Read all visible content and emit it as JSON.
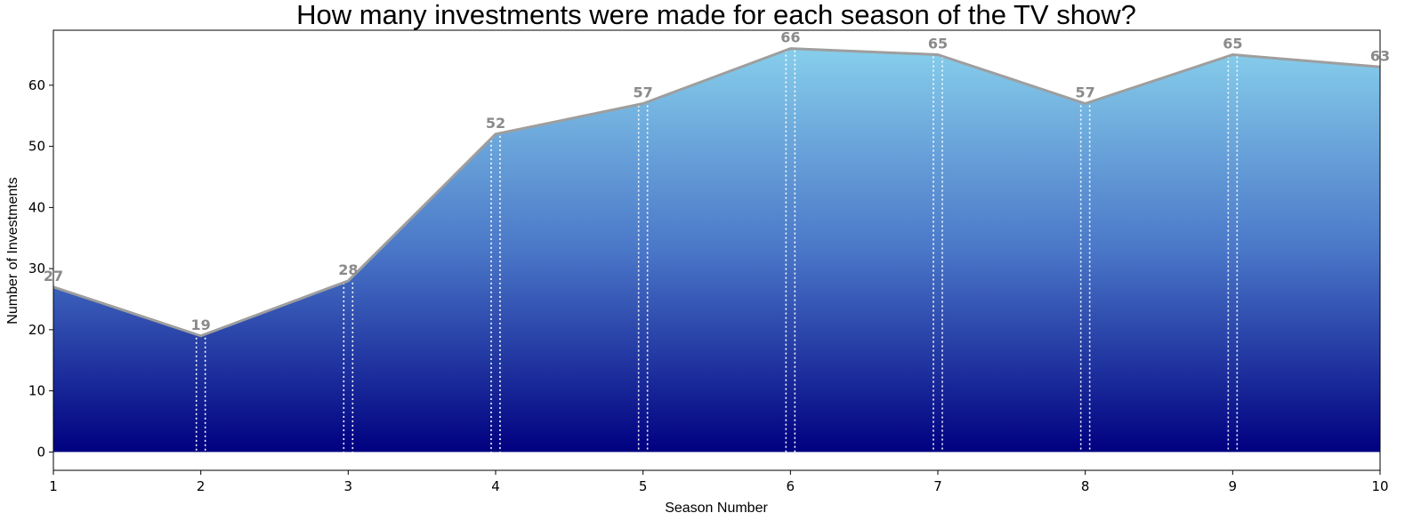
{
  "chart_data": {
    "type": "area",
    "title": "How many investments were made for each season of the TV show?",
    "xlabel": "Season Number",
    "ylabel": "Number of Investments",
    "x": [
      1,
      2,
      3,
      4,
      5,
      6,
      7,
      8,
      9,
      10
    ],
    "values": [
      27,
      19,
      28,
      52,
      57,
      66,
      65,
      57,
      65,
      63
    ],
    "xlim": [
      1,
      10
    ],
    "ylim": [
      -3,
      69
    ],
    "xticks": [
      "1",
      "2",
      "3",
      "4",
      "5",
      "6",
      "7",
      "8",
      "9",
      "10"
    ],
    "yticks": [
      "0",
      "10",
      "20",
      "30",
      "40",
      "50",
      "60"
    ],
    "grid": false,
    "colors": {
      "gradient_top": "#87ceeb",
      "gradient_mid": "#4a77c8",
      "gradient_bottom": "#000080",
      "line": "#9e9e9e",
      "data_label": "#8a8a8a",
      "drop_line": "#ffffff"
    }
  }
}
